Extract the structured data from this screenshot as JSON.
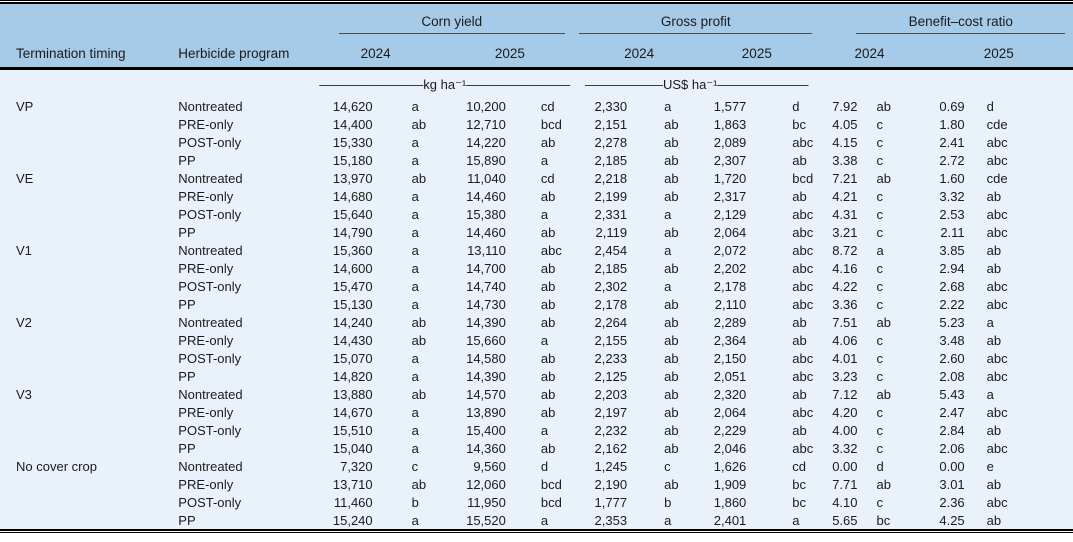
{
  "colors": {
    "header_bg": "#a6cbe9",
    "body_bg": "#e9f1fa",
    "rule": "#000000",
    "spanner_rule": "#4a4a4a",
    "text": "#1b1b1b"
  },
  "table": {
    "header": {
      "termination_timing": "Termination timing",
      "herbicide_program": "Herbicide program",
      "groups": [
        {
          "label": "Corn yield",
          "years": [
            "2024",
            "2025"
          ]
        },
        {
          "label": "Gross profit",
          "years": [
            "2024",
            "2025"
          ]
        },
        {
          "label": "Benefit–cost ratio",
          "years": [
            "2024",
            "2025"
          ]
        }
      ]
    },
    "units": {
      "corn_yield": "————————kg ha⁻¹————————",
      "gross_profit": "——————US$ ha⁻¹———————"
    },
    "groups": [
      {
        "timing": "VP",
        "rows": [
          {
            "herbicide": "Nontreated",
            "values": [
              "14,620",
              "a",
              "10,200",
              "cd",
              "2,330",
              "a",
              "1,577",
              "d",
              "7.92",
              "ab",
              "0.69",
              "d"
            ]
          },
          {
            "herbicide": "PRE-only",
            "values": [
              "14,400",
              "ab",
              "12,710",
              "bcd",
              "2,151",
              "ab",
              "1,863",
              "bc",
              "4.05",
              "c",
              "1.80",
              "cde"
            ]
          },
          {
            "herbicide": "POST-only",
            "values": [
              "15,330",
              "a",
              "14,220",
              "ab",
              "2,278",
              "ab",
              "2,089",
              "abc",
              "4.15",
              "c",
              "2.41",
              "abc"
            ]
          },
          {
            "herbicide": "PP",
            "values": [
              "15,180",
              "a",
              "15,890",
              "a",
              "2,185",
              "ab",
              "2,307",
              "ab",
              "3.38",
              "c",
              "2.72",
              "abc"
            ]
          }
        ]
      },
      {
        "timing": "VE",
        "rows": [
          {
            "herbicide": "Nontreated",
            "values": [
              "13,970",
              "ab",
              "11,040",
              "cd",
              "2,218",
              "ab",
              "1,720",
              "bcd",
              "7.21",
              "ab",
              "1.60",
              "cde"
            ]
          },
          {
            "herbicide": "PRE-only",
            "values": [
              "14,680",
              "a",
              "14,460",
              "ab",
              "2,199",
              "ab",
              "2,317",
              "ab",
              "4.21",
              "c",
              "3.32",
              "ab"
            ]
          },
          {
            "herbicide": "POST-only",
            "values": [
              "15,640",
              "a",
              "15,380",
              "a",
              "2,331",
              "a",
              "2,129",
              "abc",
              "4.31",
              "c",
              "2.53",
              "abc"
            ]
          },
          {
            "herbicide": "PP",
            "values": [
              "14,790",
              "a",
              "14,460",
              "ab",
              "2,119",
              "ab",
              "2,064",
              "abc",
              "3.21",
              "c",
              "2.11",
              "abc"
            ]
          }
        ]
      },
      {
        "timing": "V1",
        "rows": [
          {
            "herbicide": "Nontreated",
            "values": [
              "15,360",
              "a",
              "13,110",
              "abc",
              "2,454",
              "a",
              "2,072",
              "abc",
              "8.72",
              "a",
              "3.85",
              "ab"
            ]
          },
          {
            "herbicide": "PRE-only",
            "values": [
              "14,600",
              "a",
              "14,700",
              "ab",
              "2,185",
              "ab",
              "2,202",
              "abc",
              "4.16",
              "c",
              "2.94",
              "ab"
            ]
          },
          {
            "herbicide": "POST-only",
            "values": [
              "15,470",
              "a",
              "14,740",
              "ab",
              "2,302",
              "a",
              "2,178",
              "abc",
              "4.22",
              "c",
              "2.68",
              "abc"
            ]
          },
          {
            "herbicide": "PP",
            "values": [
              "15,130",
              "a",
              "14,730",
              "ab",
              "2,178",
              "ab",
              "2,110",
              "abc",
              "3.36",
              "c",
              "2.22",
              "abc"
            ]
          }
        ]
      },
      {
        "timing": "V2",
        "rows": [
          {
            "herbicide": "Nontreated",
            "values": [
              "14,240",
              "ab",
              "14,390",
              "ab",
              "2,264",
              "ab",
              "2,289",
              "ab",
              "7.51",
              "ab",
              "5.23",
              "a"
            ]
          },
          {
            "herbicide": "PRE-only",
            "values": [
              "14,430",
              "ab",
              "15,660",
              "a",
              "2,155",
              "ab",
              "2,364",
              "ab",
              "4.06",
              "c",
              "3.48",
              "ab"
            ]
          },
          {
            "herbicide": "POST-only",
            "values": [
              "15,070",
              "a",
              "14,580",
              "ab",
              "2,233",
              "ab",
              "2,150",
              "abc",
              "4.01",
              "c",
              "2.60",
              "abc"
            ]
          },
          {
            "herbicide": "PP",
            "values": [
              "14,820",
              "a",
              "14,390",
              "ab",
              "2,125",
              "ab",
              "2,051",
              "abc",
              "3.23",
              "c",
              "2.08",
              "abc"
            ]
          }
        ]
      },
      {
        "timing": "V3",
        "rows": [
          {
            "herbicide": "Nontreated",
            "values": [
              "13,880",
              "ab",
              "14,570",
              "ab",
              "2,203",
              "ab",
              "2,320",
              "ab",
              "7.12",
              "ab",
              "5.43",
              "a"
            ]
          },
          {
            "herbicide": "PRE-only",
            "values": [
              "14,670",
              "a",
              "13,890",
              "ab",
              "2,197",
              "ab",
              "2,064",
              "abc",
              "4.20",
              "c",
              "2.47",
              "abc"
            ]
          },
          {
            "herbicide": "POST-only",
            "values": [
              "15,510",
              "a",
              "15,400",
              "a",
              "2,232",
              "ab",
              "2,229",
              "ab",
              "4.00",
              "c",
              "2.84",
              "ab"
            ]
          },
          {
            "herbicide": "PP",
            "values": [
              "15,040",
              "a",
              "14,360",
              "ab",
              "2,162",
              "ab",
              "2,046",
              "abc",
              "3.32",
              "c",
              "2.06",
              "abc"
            ]
          }
        ]
      },
      {
        "timing": "No cover crop",
        "rows": [
          {
            "herbicide": "Nontreated",
            "values": [
              "7,320",
              "c",
              "9,560",
              "d",
              "1,245",
              "c",
              "1,626",
              "cd",
              "0.00",
              "d",
              "0.00",
              "e"
            ]
          },
          {
            "herbicide": "PRE-only",
            "values": [
              "13,710",
              "ab",
              "12,060",
              "bcd",
              "2,190",
              "ab",
              "1,909",
              "bc",
              "7.71",
              "ab",
              "3.01",
              "ab"
            ]
          },
          {
            "herbicide": "POST-only",
            "values": [
              "11,460",
              "b",
              "11,950",
              "bcd",
              "1,777",
              "b",
              "1,860",
              "bc",
              "4.10",
              "c",
              "2.36",
              "abc"
            ]
          },
          {
            "herbicide": "PP",
            "values": [
              "15,240",
              "a",
              "15,520",
              "a",
              "2,353",
              "a",
              "2,401",
              "a",
              "5.65",
              "bc",
              "4.25",
              "ab"
            ]
          }
        ]
      }
    ]
  }
}
